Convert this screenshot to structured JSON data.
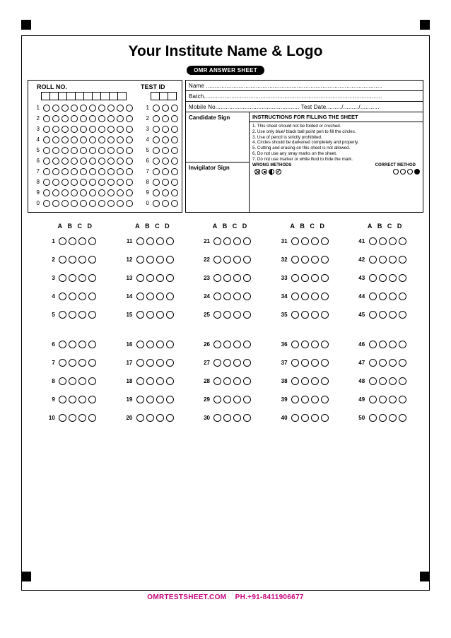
{
  "title": "Your Institute Name & Logo",
  "subtitle_pill": "OMR ANSWER SHEET",
  "roll": {
    "label": "ROLL NO.",
    "digits": 10,
    "rows": [
      "1",
      "2",
      "3",
      "4",
      "5",
      "6",
      "7",
      "8",
      "9",
      "0"
    ]
  },
  "testid": {
    "label": "TEST ID",
    "digits": 3,
    "rows": [
      "1",
      "2",
      "3",
      "4",
      "5",
      "6",
      "7",
      "8",
      "9",
      "0"
    ]
  },
  "info": {
    "name": "Name .......................................................................................................",
    "batch": "Batch........................................................................................................",
    "mobile_test": "Mobile No................................................. Test Date........./........./..........."
  },
  "sign": {
    "candidate": "Candidate Sign",
    "invigilator": "Invigilator Sign"
  },
  "instructions": {
    "header": "INSTRUCTIONS FOR FILLING THE SHEET",
    "items": [
      "1.  This sheet should not be folded or crushed.",
      "2.  Use only blue/ black ball point pen to fill the circles.",
      "3.  Use of pencil is strictly prohibited.",
      "4.  Circles should be darkened completely and properly.",
      "5.  Cutting and erasing on this sheet is not allowed.",
      "6.  Do not use any stray marks on the sheet.",
      "7.  Do not use marker or white fluid to hide the mark."
    ],
    "wrong_label": "WRONG METHODS",
    "correct_label": "CORRECT METHOD"
  },
  "answers": {
    "options": [
      "A",
      "B",
      "C",
      "D"
    ],
    "cols": 5,
    "per_col": 10,
    "total": 50
  },
  "footer": {
    "site": "OMRTESTSHEET.COM",
    "phone": "PH.+91-8411906677"
  },
  "colors": {
    "accent": "#c4007a",
    "frame": "#000000",
    "bg": "#ffffff"
  }
}
